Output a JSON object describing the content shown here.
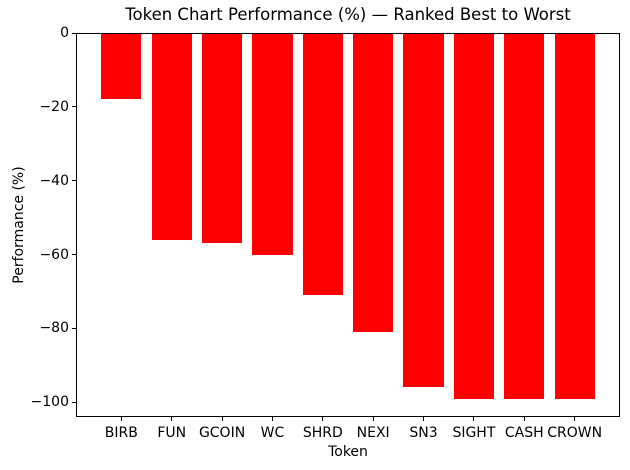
{
  "chart_data": {
    "type": "bar",
    "title": "Token Chart Performance (%) — Ranked Best to Worst",
    "xlabel": "Token",
    "ylabel": "Performance (%)",
    "categories": [
      "BIRB",
      "FUN",
      "GCOIN",
      "WC",
      "SHRD",
      "NEXI",
      "SN3",
      "SIGHT",
      "CASH",
      "CROWN"
    ],
    "values": [
      -18,
      -56,
      -57,
      -60,
      -71,
      -81,
      -96,
      -99,
      -99,
      -99
    ],
    "bar_color": "#ff0000",
    "bar_width": 0.8,
    "xlim": [
      -0.9,
      9.9
    ],
    "ylim": [
      -104,
      0
    ],
    "yticks": [
      0,
      -20,
      -40,
      -60,
      -80,
      -100
    ],
    "ytick_labels": [
      "0",
      "−20",
      "−40",
      "−60",
      "−80",
      "−100"
    ],
    "grid": false,
    "legend": null,
    "spine_color": "#000000",
    "text_color": "#000000",
    "background": "#ffffff"
  }
}
